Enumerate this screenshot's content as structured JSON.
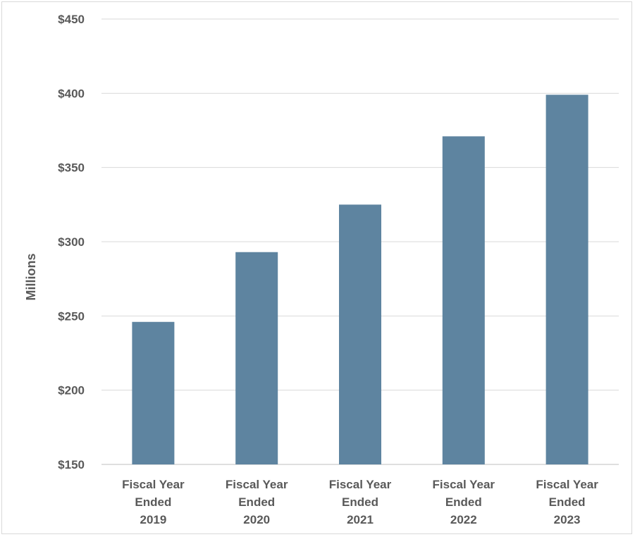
{
  "chart_data": {
    "type": "bar",
    "categories": [
      [
        "Fiscal Year",
        "Ended",
        "2019"
      ],
      [
        "Fiscal Year",
        "Ended",
        "2020"
      ],
      [
        "Fiscal Year",
        "Ended",
        "2021"
      ],
      [
        "Fiscal Year",
        "Ended",
        "2022"
      ],
      [
        "Fiscal Year",
        "Ended",
        "2023"
      ]
    ],
    "values": [
      246,
      293,
      325,
      371,
      399
    ],
    "ylabel": "Millions",
    "xlabel": "",
    "ylim": [
      150,
      450
    ],
    "yticks": [
      150,
      200,
      250,
      300,
      350,
      400,
      450
    ],
    "ytick_labels": [
      "$150",
      "$200",
      "$250",
      "$300",
      "$350",
      "$400",
      "$450"
    ],
    "grid": true,
    "colors": {
      "bar": "#5e84a0",
      "grid": "#d9d9d9",
      "axis": "#bfbfbf",
      "text": "#595959"
    }
  }
}
